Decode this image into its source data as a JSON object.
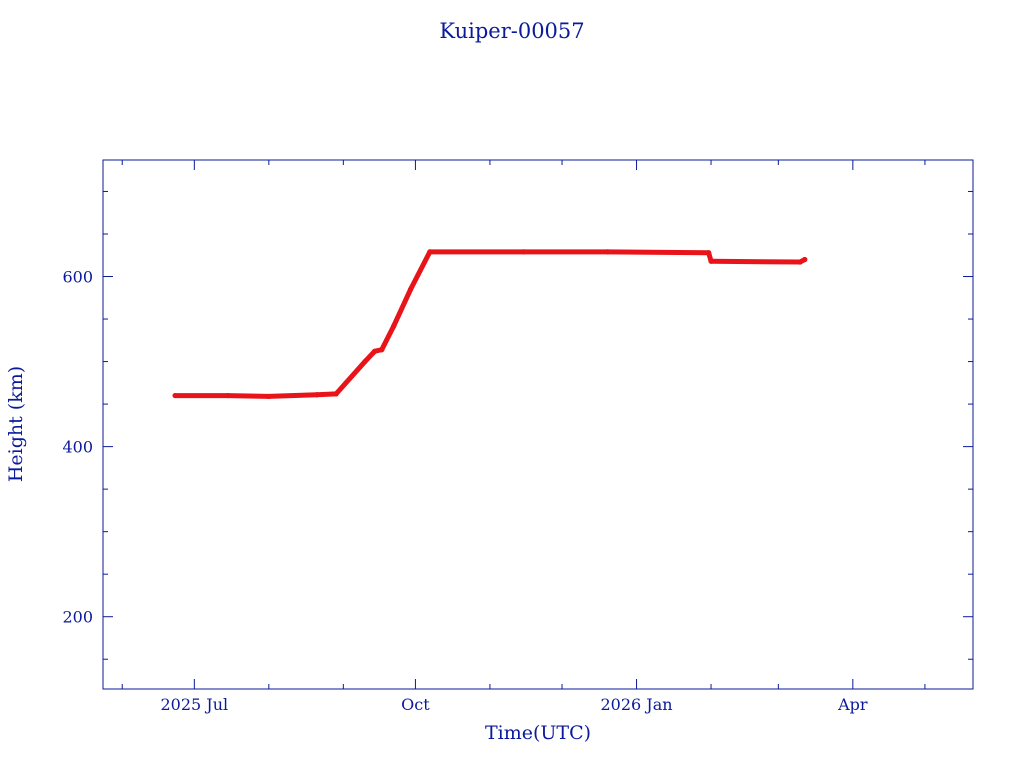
{
  "chart_data": {
    "type": "line",
    "title": "Kuiper-00057",
    "xlabel": "Time(UTC)",
    "ylabel": "Height (km)",
    "x_ticks": [
      {
        "date": "2025-07-01",
        "label": "2025 Jul"
      },
      {
        "date": "2025-10-01",
        "label": "Oct"
      },
      {
        "date": "2026-01-01",
        "label": "2026 Jan"
      },
      {
        "date": "2026-04-01",
        "label": "Apr"
      }
    ],
    "y_ticks": [
      200,
      400,
      600
    ],
    "xlim": [
      "2025-05-24",
      "2026-05-21"
    ],
    "ylim": [
      115,
      737
    ],
    "grid": false,
    "series": [
      {
        "color": "#e8141a",
        "points": [
          {
            "x": "2025-06-23",
            "y": 460
          },
          {
            "x": "2025-07-15",
            "y": 460
          },
          {
            "x": "2025-08-01",
            "y": 459
          },
          {
            "x": "2025-08-21",
            "y": 461
          },
          {
            "x": "2025-08-29",
            "y": 462
          },
          {
            "x": "2025-09-10",
            "y": 500
          },
          {
            "x": "2025-09-14",
            "y": 512
          },
          {
            "x": "2025-09-17",
            "y": 514
          },
          {
            "x": "2025-09-22",
            "y": 542
          },
          {
            "x": "2025-09-29",
            "y": 585
          },
          {
            "x": "2025-10-07",
            "y": 629
          },
          {
            "x": "2025-11-15",
            "y": 629
          },
          {
            "x": "2025-12-20",
            "y": 629
          },
          {
            "x": "2026-01-31",
            "y": 628
          },
          {
            "x": "2026-02-01",
            "y": 618
          },
          {
            "x": "2026-03-10",
            "y": 617
          },
          {
            "x": "2026-03-12",
            "y": 620
          }
        ]
      }
    ]
  }
}
